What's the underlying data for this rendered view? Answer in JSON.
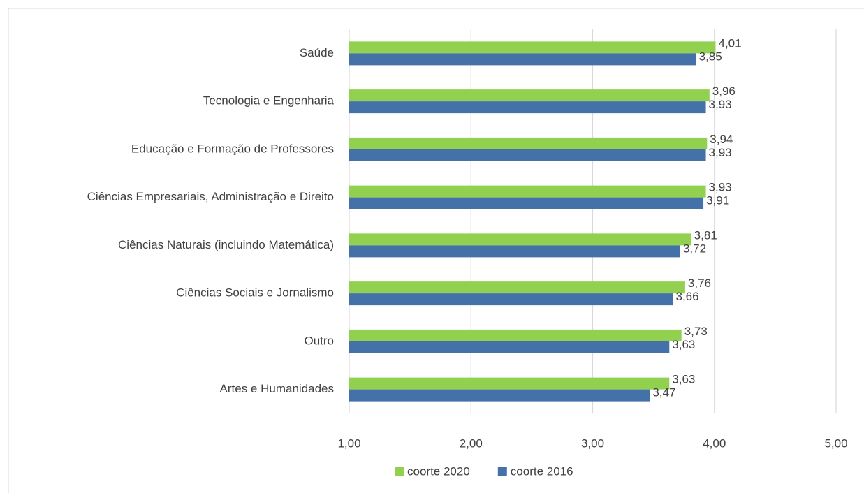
{
  "chart_data": {
    "type": "bar",
    "orientation": "horizontal",
    "categories": [
      "Saúde",
      "Tecnologia e Engenharia",
      "Educação e Formação de Professores",
      "Ciências Empresariais, Administração e Direito",
      "Ciências Naturais (incluindo Matemática)",
      "Ciências Sociais e Jornalismo",
      "Outro",
      "Artes e Humanidades"
    ],
    "series": [
      {
        "name": "coorte 2020",
        "color": "#92d050",
        "values": [
          4.01,
          3.96,
          3.94,
          3.93,
          3.81,
          3.76,
          3.73,
          3.63
        ],
        "value_labels": [
          "4,01",
          "3,96",
          "3,94",
          "3,93",
          "3,81",
          "3,76",
          "3,73",
          "3,63"
        ]
      },
      {
        "name": "coorte 2016",
        "color": "#4472a8",
        "values": [
          3.85,
          3.93,
          3.93,
          3.91,
          3.72,
          3.66,
          3.63,
          3.47
        ],
        "value_labels": [
          "3,85",
          "3,93",
          "3,93",
          "3,91",
          "3,72",
          "3,66",
          "3,63",
          "3,47"
        ]
      }
    ],
    "xlim": [
      1,
      5
    ],
    "xticks": [
      {
        "value": 1,
        "label": "1,00"
      },
      {
        "value": 2,
        "label": "2,00"
      },
      {
        "value": 3,
        "label": "3,00"
      },
      {
        "value": 4,
        "label": "4,00"
      },
      {
        "value": 5,
        "label": "5,00"
      }
    ],
    "grid": true,
    "legend": "bottom"
  }
}
